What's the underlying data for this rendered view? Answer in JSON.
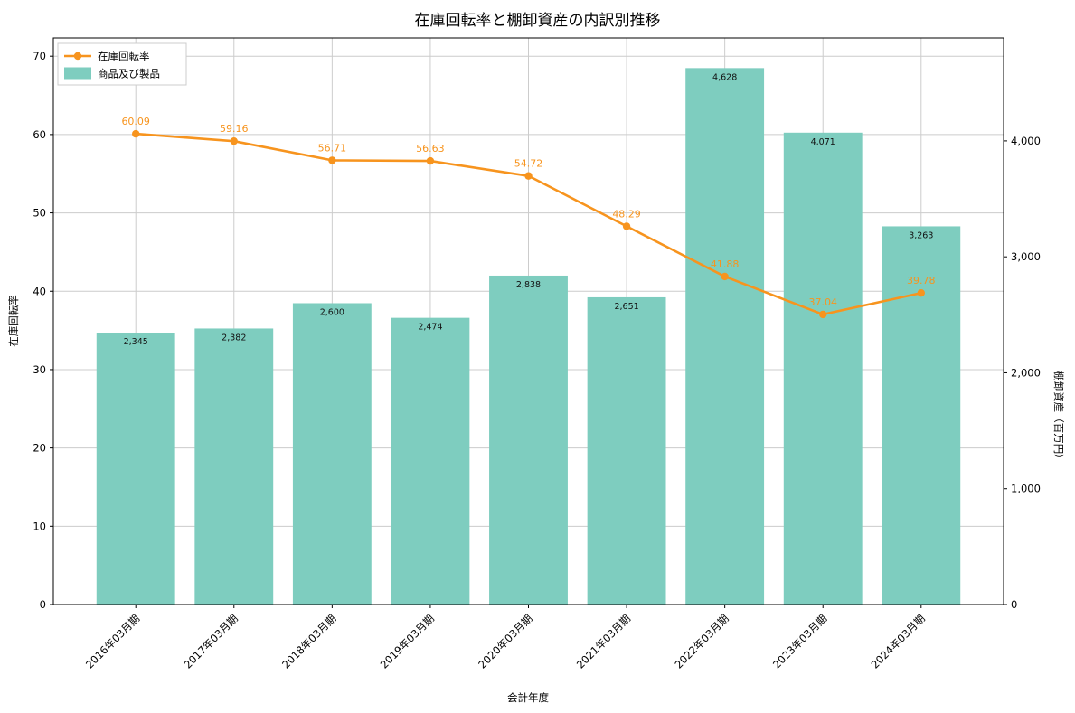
{
  "chart_data": {
    "type": "bar+line",
    "title": "在庫回転率と棚卸資産の内訳別推移",
    "xlabel": "会計年度",
    "ylabel_left": "在庫回転率",
    "ylabel_right": "棚卸資産（百万円）",
    "categories": [
      "2016年03月期",
      "2017年03月期",
      "2018年03月期",
      "2019年03月期",
      "2020年03月期",
      "2021年03月期",
      "2022年03月期",
      "2023年03月期",
      "2024年03月期"
    ],
    "series": [
      {
        "name": "在庫回転率",
        "kind": "line",
        "axis": "left",
        "color": "#f7941e",
        "values": [
          60.09,
          59.16,
          56.71,
          56.63,
          54.72,
          48.29,
          41.88,
          37.04,
          39.78
        ]
      },
      {
        "name": "商品及び製品",
        "kind": "bar",
        "axis": "right",
        "color": "#7ecdbf",
        "values": [
          2345,
          2382,
          2600,
          2474,
          2838,
          2651,
          4628,
          4071,
          3263
        ]
      }
    ],
    "left_axis": {
      "ticks": [
        0,
        10,
        20,
        30,
        40,
        50,
        60,
        70
      ],
      "max": 72.33
    },
    "right_axis": {
      "ticks": [
        0,
        1000,
        2000,
        3000,
        4000
      ],
      "max": 4888
    },
    "grid": true,
    "legend_position": "upper-left",
    "colors": {
      "grid": "#cccccc",
      "axis": "#000000",
      "text": "#111111",
      "legend_border": "#cccccc"
    }
  }
}
